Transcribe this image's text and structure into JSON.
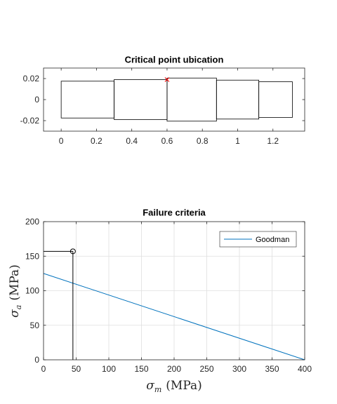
{
  "colors": {
    "axis": "#262626",
    "grid": "#dfdfdf",
    "series": "#0072bd",
    "marker_x": "#ff0000",
    "shape": "#000000"
  },
  "chart_data": [
    {
      "type": "line",
      "title": "Critical point ubication",
      "xlabel": "",
      "ylabel": "",
      "xlim": [
        -0.1,
        1.38
      ],
      "ylim": [
        -0.03,
        0.03
      ],
      "xticks": [
        0,
        0.2,
        0.4,
        0.6,
        0.8,
        1,
        1.2
      ],
      "xtick_labels": [
        "0",
        "0.2",
        "0.4",
        "0.6",
        "0.8",
        "1",
        "1.2"
      ],
      "yticks": [
        -0.02,
        0,
        0.02
      ],
      "ytick_labels": [
        "-0.02",
        "0",
        "0.02"
      ],
      "grid": false,
      "segments": [
        {
          "x0": 0.0,
          "x1": 0.3,
          "half_height": 0.0175
        },
        {
          "x0": 0.3,
          "x1": 0.6,
          "half_height": 0.019
        },
        {
          "x0": 0.6,
          "x1": 0.88,
          "half_height": 0.0205
        },
        {
          "x0": 0.88,
          "x1": 1.12,
          "half_height": 0.0185
        },
        {
          "x0": 1.12,
          "x1": 1.31,
          "half_height": 0.017
        }
      ],
      "critical_point": {
        "x": 0.6,
        "y": 0.019,
        "marker": "x"
      }
    },
    {
      "type": "line",
      "title": "Failure criteria",
      "xlabel_main": "σ",
      "xlabel_sub": "m",
      "xlabel_unit": "(MPa)",
      "ylabel_main": "σ",
      "ylabel_sub": "a",
      "ylabel_unit": "(MPa)",
      "xlim": [
        0,
        400
      ],
      "ylim": [
        0,
        200
      ],
      "xticks": [
        0,
        50,
        100,
        150,
        200,
        250,
        300,
        350,
        400
      ],
      "xtick_labels": [
        "0",
        "50",
        "100",
        "150",
        "200",
        "250",
        "300",
        "350",
        "400"
      ],
      "yticks": [
        0,
        50,
        100,
        150,
        200
      ],
      "ytick_labels": [
        "0",
        "50",
        "100",
        "150",
        "200"
      ],
      "grid": true,
      "legend_position": "top-right",
      "series": [
        {
          "name": "Goodman",
          "x": [
            0,
            400
          ],
          "y": [
            125,
            0
          ]
        }
      ],
      "operating_point": {
        "x": 45,
        "y": 157,
        "marker": "o"
      }
    }
  ]
}
